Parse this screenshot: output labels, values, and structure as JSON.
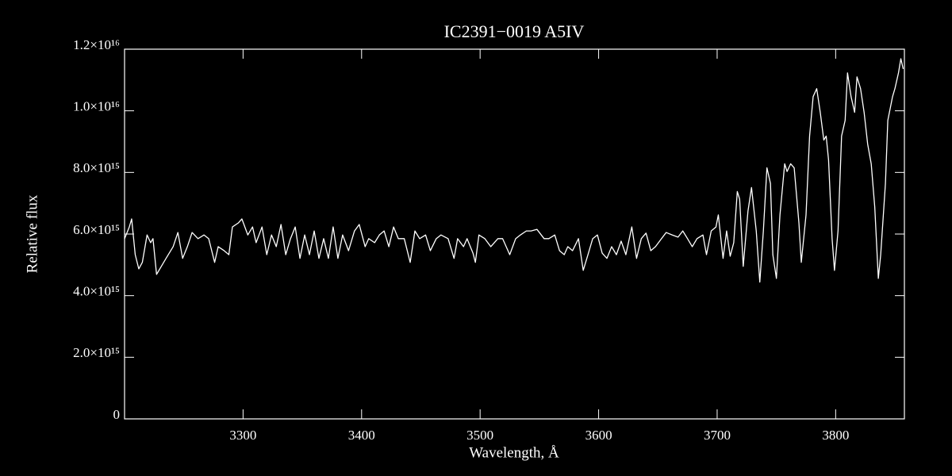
{
  "chart_data": {
    "type": "line",
    "title": "IC2391−0019   A5IV",
    "x_label": "Wavelength, Å",
    "y_label": "Relative flux",
    "color": "#ffffff",
    "xlim": [
      3200,
      3858
    ],
    "ylim": [
      0,
      1.2e+16
    ],
    "xticks": [
      3300,
      3400,
      3500,
      3600,
      3700,
      3800
    ],
    "yticks": [
      0,
      {
        "value": 2000000000000000.0,
        "label": "2.0×10¹⁵"
      },
      {
        "value": 4000000000000000.0,
        "label": "4.0×10¹⁵"
      },
      {
        "value": 6000000000000000.0,
        "label": "6.0×10¹⁵"
      },
      {
        "value": 8000000000000000.0,
        "label": "8.0×10¹⁵"
      },
      {
        "value": 1e+16,
        "label": "1.0×10¹⁶"
      },
      {
        "value": 1.2e+16,
        "label": "1.2×10¹⁶"
      }
    ],
    "x": [
      3200,
      3204,
      3206,
      3209,
      3212,
      3215,
      3219,
      3222,
      3224,
      3227,
      3231,
      3235,
      3241,
      3245,
      3249,
      3253,
      3257,
      3262,
      3267,
      3271,
      3276,
      3279,
      3284,
      3288,
      3291,
      3296,
      3299,
      3304,
      3308,
      3311,
      3316,
      3320,
      3324,
      3328,
      3332,
      3336,
      3340,
      3344,
      3348,
      3352,
      3356,
      3360,
      3364,
      3368,
      3372,
      3376,
      3380,
      3384,
      3389,
      3394,
      3398,
      3403,
      3406,
      3411,
      3415,
      3419,
      3423,
      3427,
      3431,
      3436,
      3441,
      3445,
      3449,
      3454,
      3458,
      3463,
      3467,
      3473,
      3478,
      3481,
      3486,
      3489,
      3494,
      3496,
      3499,
      3504,
      3509,
      3515,
      3519,
      3525,
      3530,
      3534,
      3539,
      3543,
      3548,
      3554,
      3558,
      3563,
      3567,
      3571,
      3574,
      3578,
      3583,
      3587,
      3591,
      3595,
      3599,
      3603,
      3607,
      3611,
      3615,
      3619,
      3623,
      3628,
      3632,
      3636,
      3640,
      3644,
      3648,
      3653,
      3657,
      3662,
      3667,
      3671,
      3675,
      3679,
      3683,
      3688,
      3691,
      3695,
      3699,
      3701,
      3705,
      3708,
      3711,
      3714,
      3717,
      3719,
      3722,
      3726,
      3729,
      3733,
      3736,
      3739,
      3742,
      3745,
      3747,
      3750,
      3753,
      3757,
      3759,
      3762,
      3765,
      3769,
      3771,
      3775,
      3778,
      3781,
      3784,
      3787,
      3790,
      3792,
      3794,
      3797,
      3799,
      3802,
      3805,
      3808,
      3810,
      3813,
      3816,
      3818,
      3821,
      3824,
      3827,
      3830,
      3833,
      3836,
      3838,
      3842,
      3844,
      3848,
      3850,
      3853,
      3855,
      3857
    ],
    "values": [
      5850000000000000.0,
      6230000000000000.0,
      6490000000000000.0,
      5330000000000000.0,
      4870000000000000.0,
      5080000000000000.0,
      5970000000000000.0,
      5720000000000000.0,
      5850000000000000.0,
      4690000000000000.0,
      4950000000000000.0,
      5210000000000000.0,
      5590000000000000.0,
      6050000000000000.0,
      5210000000000000.0,
      5590000000000000.0,
      6050000000000000.0,
      5850000000000000.0,
      5970000000000000.0,
      5850000000000000.0,
      5080000000000000.0,
      5590000000000000.0,
      5460000000000000.0,
      5330000000000000.0,
      6230000000000000.0,
      6360000000000000.0,
      6490000000000000.0,
      5970000000000000.0,
      6230000000000000.0,
      5720000000000000.0,
      6230000000000000.0,
      5330000000000000.0,
      5970000000000000.0,
      5590000000000000.0,
      6310000000000000.0,
      5330000000000000.0,
      5850000000000000.0,
      6230000000000000.0,
      5210000000000000.0,
      5970000000000000.0,
      5330000000000000.0,
      6100000000000000.0,
      5210000000000000.0,
      5850000000000000.0,
      5210000000000000.0,
      6230000000000000.0,
      5210000000000000.0,
      5970000000000000.0,
      5460000000000000.0,
      6100000000000000.0,
      6310000000000000.0,
      5590000000000000.0,
      5850000000000000.0,
      5720000000000000.0,
      5970000000000000.0,
      6100000000000000.0,
      5590000000000000.0,
      6230000000000000.0,
      5850000000000000.0,
      5850000000000000.0,
      5080000000000000.0,
      6100000000000000.0,
      5850000000000000.0,
      5970000000000000.0,
      5460000000000000.0,
      5850000000000000.0,
      5970000000000000.0,
      5850000000000000.0,
      5210000000000000.0,
      5850000000000000.0,
      5590000000000000.0,
      5850000000000000.0,
      5380000000000000.0,
      5080000000000000.0,
      5970000000000000.0,
      5850000000000000.0,
      5590000000000000.0,
      5850000000000000.0,
      5850000000000000.0,
      5330000000000000.0,
      5850000000000000.0,
      5970000000000000.0,
      6100000000000000.0,
      6100000000000000.0,
      6150000000000000.0,
      5850000000000000.0,
      5850000000000000.0,
      5970000000000000.0,
      5460000000000000.0,
      5330000000000000.0,
      5590000000000000.0,
      5460000000000000.0,
      5850000000000000.0,
      4820000000000000.0,
      5330000000000000.0,
      5850000000000000.0,
      5970000000000000.0,
      5380000000000000.0,
      5210000000000000.0,
      5590000000000000.0,
      5330000000000000.0,
      5770000000000000.0,
      5330000000000000.0,
      6230000000000000.0,
      5210000000000000.0,
      5850000000000000.0,
      6030000000000000.0,
      5460000000000000.0,
      5590000000000000.0,
      5850000000000000.0,
      6050000000000000.0,
      5970000000000000.0,
      5900000000000000.0,
      6100000000000000.0,
      5850000000000000.0,
      5590000000000000.0,
      5850000000000000.0,
      5970000000000000.0,
      5330000000000000.0,
      6100000000000000.0,
      6230000000000000.0,
      6620000000000000.0,
      5210000000000000.0,
      6100000000000000.0,
      5280000000000000.0,
      5720000000000000.0,
      7380000000000000.0,
      7130000000000000.0,
      4950000000000000.0,
      6740000000000000.0,
      7510000000000000.0,
      6100000000000000.0,
      4440000000000000.0,
      6100000000000000.0,
      8150000000000000.0,
      7640000000000000.0,
      5330000000000000.0,
      4560000000000000.0,
      6620000000000000.0,
      8280000000000000.0,
      8030000000000000.0,
      8280000000000000.0,
      8150000000000000.0,
      6360000000000000.0,
      5080000000000000.0,
      6620000000000000.0,
      9180000000000000.0,
      1.046e+16,
      1.072e+16,
      9950000000000000.0,
      9050000000000000.0,
      9180000000000000.0,
      8410000000000000.0,
      5850000000000000.0,
      4820000000000000.0,
      6100000000000000.0,
      9180000000000000.0,
      9690000000000000.0,
      1.123e+16,
      1.046e+16,
      9950000000000000.0,
      1.11e+16,
      1.072e+16,
      9950000000000000.0,
      8920000000000000.0,
      8280000000000000.0,
      6870000000000000.0,
      4560000000000000.0,
      5330000000000000.0,
      7640000000000000.0,
      9690000000000000.0,
      1.046e+16,
      1.072e+16,
      1.123e+16,
      1.169e+16,
      1.136e+16
    ]
  }
}
